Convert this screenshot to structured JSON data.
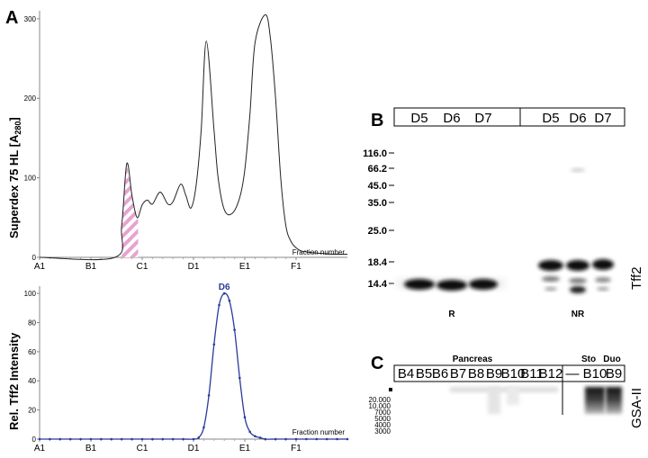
{
  "panels": {
    "a": "A",
    "b": "B",
    "c": "C"
  },
  "chart_data": [
    {
      "type": "line",
      "ylabel_main": "Superdex 75 HL [A",
      "ylabel_sub": "280",
      "ylabel_close": "]",
      "xlabel": "Fraction number",
      "x_ticks": [
        "A1",
        "B1",
        "C1",
        "D1",
        "E1",
        "F1"
      ],
      "y_ticks": [
        0,
        100,
        200,
        300
      ],
      "ylim": [
        0,
        310
      ],
      "series": [
        {
          "x": [
            0,
            1.47,
            1.6,
            1.7,
            1.8,
            1.9,
            2.0,
            2.1,
            2.2,
            2.35,
            2.5,
            2.6,
            2.75,
            2.85,
            2.95,
            3.05,
            3.15,
            3.25,
            3.4,
            3.48,
            3.6,
            3.75,
            3.9,
            4.0,
            4.1,
            4.2,
            4.4,
            4.5,
            4.6,
            4.7,
            4.8,
            4.9,
            5.0,
            5.1,
            5.3,
            5.5,
            5.7,
            6.0
          ],
          "y": [
            0,
            0,
            40,
            118,
            78,
            50,
            66,
            72,
            67,
            82,
            67,
            70,
            92,
            78,
            62,
            90,
            160,
            272,
            160,
            100,
            60,
            55,
            75,
            110,
            180,
            270,
            305,
            275,
            200,
            100,
            40,
            20,
            12,
            8,
            6,
            5,
            4,
            4
          ]
        }
      ],
      "highlight": {
        "x_range": [
          1.6,
          1.92
        ],
        "style": "pink hatched"
      }
    },
    {
      "type": "line",
      "ylabel": "Rel. Tff2 Intensity",
      "xlabel": "Fraction number",
      "x_ticks": [
        "A1",
        "B1",
        "C1",
        "D1",
        "E1",
        "F1"
      ],
      "y_ticks": [
        0,
        20,
        40,
        60,
        80,
        100
      ],
      "ylim": [
        0,
        105
      ],
      "peak_label": "D6",
      "series": [
        {
          "x": [
            0,
            0.2,
            0.4,
            0.6,
            0.8,
            1.0,
            1.2,
            1.4,
            1.6,
            1.8,
            2.0,
            2.2,
            2.4,
            2.6,
            2.8,
            3.0,
            3.1,
            3.2,
            3.3,
            3.4,
            3.5,
            3.6,
            3.7,
            3.8,
            3.9,
            4.0,
            4.1,
            4.2,
            4.3,
            4.4,
            4.6,
            4.8,
            5.0,
            5.2,
            5.4,
            5.6,
            5.8,
            6.0
          ],
          "y": [
            0,
            0,
            0,
            0,
            0,
            0,
            0,
            0,
            0,
            0,
            0,
            0,
            0,
            0,
            0,
            0,
            1,
            8,
            30,
            65,
            92,
            100,
            95,
            75,
            42,
            15,
            5,
            2,
            1,
            0,
            0,
            0,
            0,
            0,
            0,
            0,
            0,
            0
          ]
        }
      ]
    }
  ],
  "blot_b": {
    "lanes": [
      "D5",
      "D6",
      "D7",
      "D5",
      "D6",
      "D7"
    ],
    "markers": [
      "116.0",
      "66.2",
      "45.0",
      "35.0",
      "25.0",
      "18.4",
      "14.4"
    ],
    "conditions": [
      "R",
      "NR"
    ],
    "antibody": "Tff2"
  },
  "blot_c": {
    "group_pancreas": "Pancreas",
    "group_sto": "Sto",
    "group_duo": "Duo",
    "lanes": [
      "B4",
      "B5",
      "B6",
      "B7",
      "B8",
      "B9",
      "B10",
      "B11",
      "B12",
      "—",
      "B10",
      "B9"
    ],
    "markers": [
      "20.000",
      "10.000",
      "7000",
      "5000",
      "4000",
      "3000"
    ],
    "lectin": "GSA-II"
  }
}
